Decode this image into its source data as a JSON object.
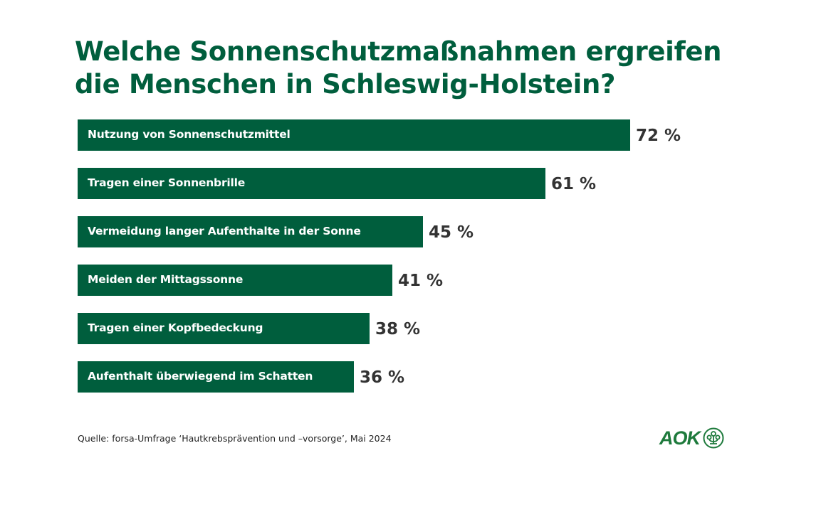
{
  "header": {
    "title_line1": "Welche Sonnenschutzmaßnahmen ergreifen",
    "title_line2": "die Menschen in Schleswig-Holstein?"
  },
  "colors": {
    "bar": "#005e3d",
    "title": "#005e3d",
    "value_text": "#333333",
    "logo": "#1e7a3c"
  },
  "chart_data": {
    "type": "bar",
    "orientation": "horizontal",
    "title": "Welche Sonnenschutzmaßnahmen ergreifen die Menschen in Schleswig-Holstein?",
    "xlabel": "",
    "ylabel": "",
    "unit": "%",
    "categories": [
      "Nutzung von Sonnenschutzmittel",
      "Tragen einer Sonnenbrille",
      "Vermeidung langer Aufenthalte in der Sonne",
      "Meiden der Mittagssonne",
      "Tragen einer Kopfbedeckung",
      "Aufenthalt überwiegend im Schatten"
    ],
    "values": [
      72,
      61,
      45,
      41,
      38,
      36
    ],
    "value_labels": [
      "72 %",
      "61 %",
      "45 %",
      "41 %",
      "38 %",
      "36 %"
    ],
    "xlim": [
      0,
      72
    ],
    "grid": false,
    "legend": "none"
  },
  "footer": {
    "source": "Quelle: forsa-Umfrage ‘Hautkrebsprävention und –vorsorge’, Mai 2024",
    "logo_text": "AOK",
    "logo_icon": "aok-tree-icon"
  }
}
